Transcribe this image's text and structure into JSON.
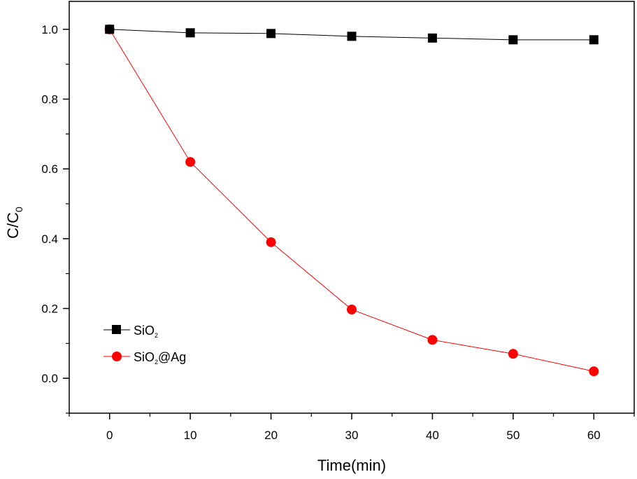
{
  "chart_data": {
    "type": "line",
    "title": "",
    "xlabel": "Time(min)",
    "ylabel_main": "C/C",
    "ylabel_sub": "0",
    "xlim": [
      -5,
      65
    ],
    "ylim": [
      -0.1,
      1.08
    ],
    "xticks": [
      0,
      10,
      20,
      30,
      40,
      50,
      60
    ],
    "xtick_labels": [
      "0",
      "10",
      "20",
      "30",
      "40",
      "50",
      "60"
    ],
    "yticks": [
      0.0,
      0.2,
      0.4,
      0.6,
      0.8,
      1.0
    ],
    "ytick_labels": [
      "0.0",
      "0.2",
      "0.4",
      "0.6",
      "0.8",
      "1.0"
    ],
    "grid": false,
    "legend_position": "bottom-left",
    "series": [
      {
        "name": "SiO₂",
        "legend_main": "SiO",
        "legend_sub": "2",
        "legend_suffix": "",
        "color": "#000000",
        "marker": "square",
        "x": [
          0,
          10,
          20,
          30,
          40,
          50,
          60
        ],
        "y": [
          1.0,
          0.99,
          0.988,
          0.98,
          0.975,
          0.97,
          0.97
        ]
      },
      {
        "name": "SiO₂@Ag",
        "legend_main": "SiO",
        "legend_sub": "2",
        "legend_suffix": "@Ag",
        "color": "#ff0000",
        "marker": "circle",
        "x": [
          0,
          10,
          20,
          30,
          40,
          50,
          60
        ],
        "y": [
          1.0,
          0.62,
          0.39,
          0.197,
          0.11,
          0.07,
          0.02
        ]
      }
    ]
  }
}
